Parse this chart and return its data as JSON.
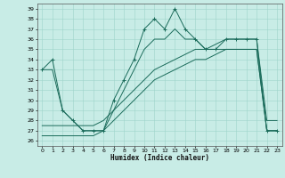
{
  "xlabel": "Humidex (Indice chaleur)",
  "bg_color": "#c8ece6",
  "line_color": "#1a6b5a",
  "grid_color": "#9dd4ca",
  "x_values": [
    0,
    1,
    2,
    3,
    4,
    5,
    6,
    7,
    8,
    9,
    10,
    11,
    12,
    13,
    14,
    15,
    16,
    17,
    18,
    19,
    20,
    21,
    22,
    23
  ],
  "main_y": [
    33,
    34,
    29,
    28,
    27,
    27,
    27,
    30,
    32,
    34,
    37,
    38,
    37,
    39,
    37,
    36,
    35,
    35,
    36,
    36,
    36,
    36,
    27,
    27
  ],
  "line2_y": [
    33,
    33,
    29,
    28,
    27,
    27,
    27,
    29,
    31,
    33,
    35,
    36,
    36,
    37,
    36,
    36,
    35,
    35,
    35,
    35,
    35,
    35,
    27,
    27
  ],
  "line3_y": [
    26.5,
    26.5,
    26.5,
    26.5,
    26.5,
    26.5,
    27,
    28,
    29,
    30,
    31,
    32,
    32.5,
    33,
    33.5,
    34,
    34,
    34.5,
    35,
    35,
    35,
    35,
    27,
    27
  ],
  "line4_y": [
    27.5,
    27.5,
    27.5,
    27.5,
    27.5,
    27.5,
    28,
    29,
    30,
    31,
    32,
    33,
    33.5,
    34,
    34.5,
    35,
    35,
    35.5,
    36,
    36,
    36,
    36,
    28,
    28
  ],
  "ylim": [
    25.5,
    39.5
  ],
  "xlim": [
    -0.5,
    23.5
  ],
  "yticks": [
    26,
    27,
    28,
    29,
    30,
    31,
    32,
    33,
    34,
    35,
    36,
    37,
    38,
    39
  ],
  "xticks": [
    0,
    1,
    2,
    3,
    4,
    5,
    6,
    7,
    8,
    9,
    10,
    11,
    12,
    13,
    14,
    15,
    16,
    17,
    18,
    19,
    20,
    21,
    22,
    23
  ]
}
